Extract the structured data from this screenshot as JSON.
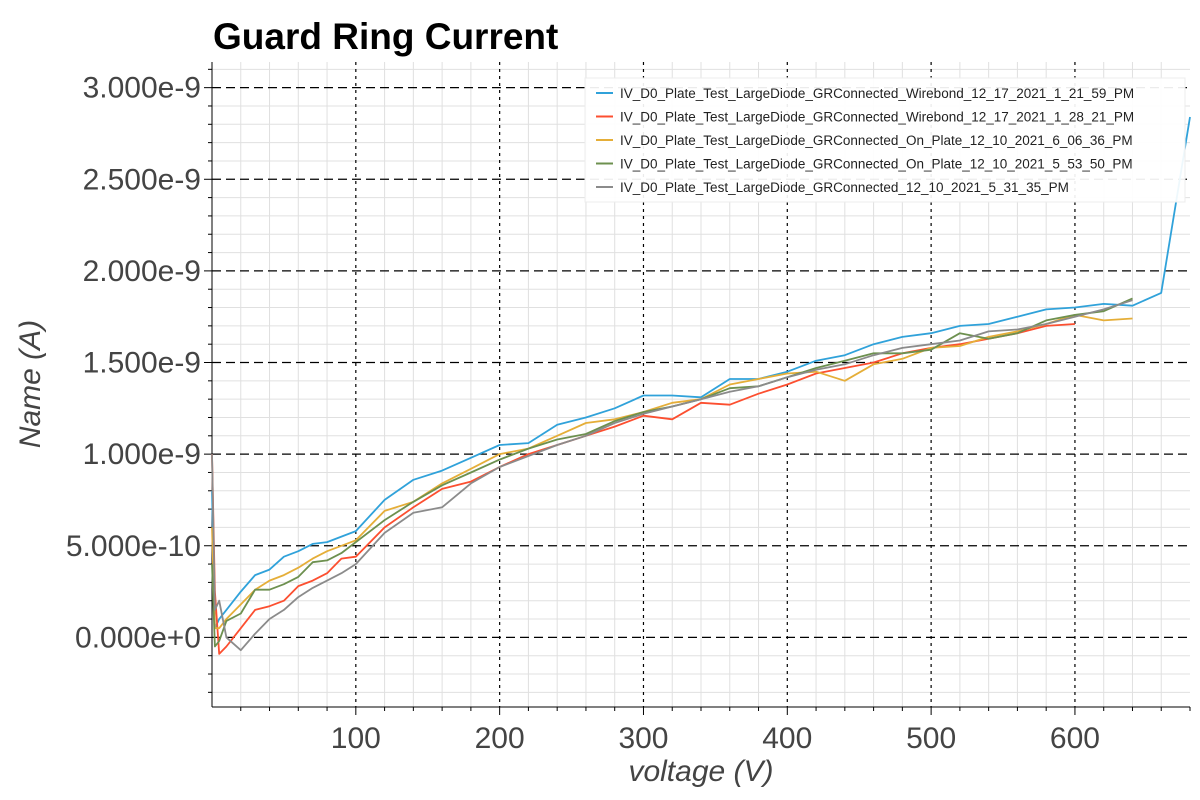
{
  "chart_data": {
    "type": "line",
    "title": "Guard Ring Current",
    "xlabel": "voltage (V)",
    "ylabel": "Name (A)",
    "xlim": [
      0,
      680
    ],
    "ylim": [
      -3.8e-10,
      3.14e-09
    ],
    "x_ticks": [
      100,
      200,
      300,
      400,
      500,
      600
    ],
    "x_tick_labels": [
      "100",
      "200",
      "300",
      "400",
      "500",
      "600"
    ],
    "y_ticks": [
      0,
      5e-10,
      1e-09,
      1.5e-09,
      2e-09,
      2.5e-09,
      3e-09
    ],
    "y_tick_labels": [
      "0.000e+0",
      "5.000e-10",
      "1.000e-9",
      "1.500e-9",
      "2.000e-9",
      "2.500e-9",
      "3.000e-9"
    ],
    "grid": true,
    "legend_position": "top-right",
    "series": [
      {
        "name": "IV_D0_Plate_Test_LargeDiode_GRConnected_Wirebond_12_17_2021_1_21_59_PM",
        "color": "#30a2da",
        "x": [
          0,
          2,
          5,
          10,
          20,
          30,
          40,
          50,
          60,
          70,
          80,
          90,
          100,
          120,
          140,
          160,
          180,
          200,
          220,
          240,
          260,
          280,
          300,
          320,
          340,
          360,
          380,
          400,
          420,
          440,
          460,
          480,
          500,
          520,
          540,
          560,
          580,
          600,
          620,
          640,
          660,
          680
        ],
        "y": [
          8e-10,
          5e-11,
          1e-10,
          1.5e-10,
          2.5e-10,
          3.4e-10,
          3.7e-10,
          4.4e-10,
          4.7e-10,
          5.1e-10,
          5.2e-10,
          5.5e-10,
          5.8e-10,
          7.5e-10,
          8.6e-10,
          9.1e-10,
          9.8e-10,
          1.05e-09,
          1.06e-09,
          1.16e-09,
          1.2e-09,
          1.25e-09,
          1.32e-09,
          1.32e-09,
          1.31e-09,
          1.41e-09,
          1.41e-09,
          1.45e-09,
          1.51e-09,
          1.54e-09,
          1.6e-09,
          1.64e-09,
          1.66e-09,
          1.7e-09,
          1.71e-09,
          1.75e-09,
          1.79e-09,
          1.8e-09,
          1.82e-09,
          1.81e-09,
          1.88e-09,
          2.84e-09
        ]
      },
      {
        "name": "IV_D0_Plate_Test_LargeDiode_GRConnected_Wirebond_12_17_2021_1_28_21_PM",
        "color": "#fc4f30",
        "x": [
          0,
          2,
          5,
          10,
          20,
          30,
          40,
          50,
          60,
          70,
          80,
          90,
          100,
          120,
          140,
          160,
          180,
          200,
          220,
          240,
          260,
          280,
          300,
          320,
          340,
          360,
          380,
          400,
          420,
          440,
          460,
          480,
          500,
          520,
          540,
          560,
          580,
          600
        ],
        "y": [
          1e-09,
          2.5e-10,
          -9e-11,
          -5e-11,
          5e-11,
          1.5e-10,
          1.7e-10,
          2e-10,
          2.8e-10,
          3.1e-10,
          3.5e-10,
          4.3e-10,
          4.4e-10,
          6e-10,
          7.1e-10,
          8.1e-10,
          8.5e-10,
          9.3e-10,
          1e-09,
          1.05e-09,
          1.1e-09,
          1.15e-09,
          1.21e-09,
          1.19e-09,
          1.28e-09,
          1.27e-09,
          1.33e-09,
          1.38e-09,
          1.44e-09,
          1.47e-09,
          1.5e-09,
          1.55e-09,
          1.58e-09,
          1.6e-09,
          1.63e-09,
          1.66e-09,
          1.7e-09,
          1.71e-09
        ]
      },
      {
        "name": "IV_D0_Plate_Test_LargeDiode_GRConnected_On_Plate_12_10_2021_6_06_36_PM",
        "color": "#e5ae38",
        "x": [
          0,
          2,
          5,
          10,
          20,
          30,
          40,
          50,
          60,
          70,
          80,
          90,
          100,
          120,
          140,
          160,
          180,
          200,
          220,
          240,
          260,
          280,
          300,
          320,
          340,
          360,
          380,
          400,
          420,
          440,
          460,
          480,
          500,
          520,
          540,
          560,
          580,
          600,
          620,
          640
        ],
        "y": [
          6e-10,
          5e-11,
          5e-11,
          1e-10,
          1.8e-10,
          2.6e-10,
          3.1e-10,
          3.4e-10,
          3.8e-10,
          4.3e-10,
          4.7e-10,
          5e-10,
          5.3e-10,
          6.9e-10,
          7.4e-10,
          8.4e-10,
          9.2e-10,
          1e-09,
          1.03e-09,
          1.1e-09,
          1.17e-09,
          1.19e-09,
          1.23e-09,
          1.28e-09,
          1.3e-09,
          1.38e-09,
          1.41e-09,
          1.44e-09,
          1.45e-09,
          1.4e-09,
          1.49e-09,
          1.52e-09,
          1.58e-09,
          1.59e-09,
          1.64e-09,
          1.67e-09,
          1.71e-09,
          1.76e-09,
          1.73e-09,
          1.74e-09
        ]
      },
      {
        "name": "IV_D0_Plate_Test_LargeDiode_GRConnected_On_Plate_12_10_2021_5_53_50_PM",
        "color": "#6d904f",
        "x": [
          0,
          2,
          5,
          10,
          20,
          30,
          40,
          50,
          60,
          70,
          80,
          90,
          100,
          120,
          140,
          160,
          180,
          200,
          220,
          240,
          260,
          280,
          300,
          320,
          340,
          360,
          380,
          400,
          420,
          440,
          460,
          480,
          500,
          520,
          540,
          560,
          580,
          600,
          620,
          640
        ],
        "y": [
          4e-10,
          -5e-11,
          -2e-11,
          9e-11,
          1.3e-10,
          2.6e-10,
          2.6e-10,
          2.9e-10,
          3.3e-10,
          4.1e-10,
          4.2e-10,
          4.6e-10,
          5.2e-10,
          6.4e-10,
          7.4e-10,
          8.3e-10,
          9e-10,
          9.7e-10,
          1.03e-09,
          1.08e-09,
          1.11e-09,
          1.18e-09,
          1.23e-09,
          1.26e-09,
          1.3e-09,
          1.36e-09,
          1.37e-09,
          1.42e-09,
          1.47e-09,
          1.51e-09,
          1.55e-09,
          1.55e-09,
          1.57e-09,
          1.66e-09,
          1.63e-09,
          1.66e-09,
          1.73e-09,
          1.76e-09,
          1.78e-09,
          1.85e-09
        ]
      },
      {
        "name": "IV_D0_Plate_Test_LargeDiode_GRConnected_12_10_2021_5_31_35_PM",
        "color": "#8b8b8b",
        "x": [
          0,
          2,
          5,
          10,
          20,
          30,
          40,
          50,
          60,
          70,
          80,
          90,
          100,
          120,
          140,
          160,
          180,
          200,
          220,
          240,
          260,
          280,
          300,
          320,
          340,
          360,
          380,
          400,
          420,
          440,
          460,
          480,
          500,
          520,
          540,
          560,
          580,
          600,
          620,
          640
        ],
        "y": [
          1e-09,
          1.5e-10,
          2e-10,
          0,
          -7e-11,
          2e-11,
          1e-10,
          1.5e-10,
          2.2e-10,
          2.7e-10,
          3.1e-10,
          3.5e-10,
          4e-10,
          5.7e-10,
          6.8e-10,
          7.1e-10,
          8.4e-10,
          9.3e-10,
          9.9e-10,
          1.05e-09,
          1.1e-09,
          1.17e-09,
          1.22e-09,
          1.26e-09,
          1.3e-09,
          1.34e-09,
          1.37e-09,
          1.42e-09,
          1.46e-09,
          1.49e-09,
          1.54e-09,
          1.58e-09,
          1.6e-09,
          1.62e-09,
          1.67e-09,
          1.68e-09,
          1.71e-09,
          1.75e-09,
          1.79e-09,
          1.84e-09
        ]
      }
    ]
  }
}
